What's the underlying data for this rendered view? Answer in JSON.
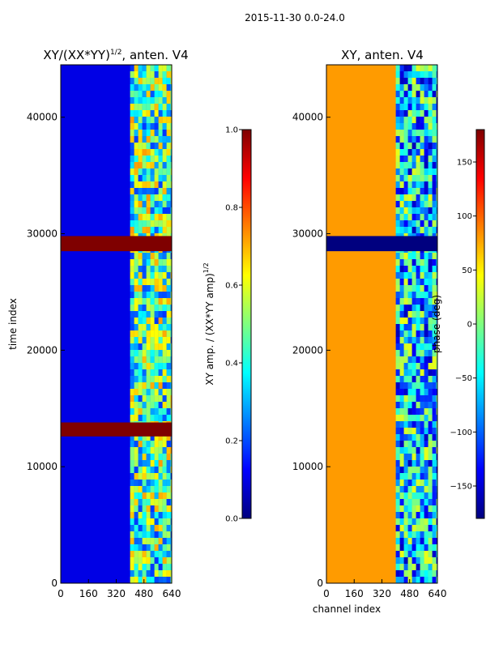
{
  "suptitle": "2015-11-30 0.0-24.0",
  "chart_data": [
    {
      "type": "heatmap",
      "title_main": "XY/(XX*YY)",
      "title_exp": "1/2",
      "title_suffix": ", anten. V4",
      "xlabel": "",
      "ylabel": "time index",
      "x_ticks": [
        0,
        160,
        320,
        480,
        640
      ],
      "y_ticks": [
        0,
        10000,
        20000,
        30000,
        40000
      ],
      "xlim": [
        0,
        640
      ],
      "ylim": [
        0,
        44500
      ],
      "colorbar": {
        "label_main": "XY amp. / (XX*YY amp)",
        "label_exp": "1/2",
        "ticks": [
          "0.0",
          "0.2",
          "0.4",
          "0.6",
          "0.8",
          "1.0"
        ],
        "range": [
          0.0,
          1.0
        ],
        "colormap": "jet"
      },
      "description_regions": {
        "base_value": 0.1,
        "active_channel_range": [
          400,
          640
        ],
        "active_value": 0.45,
        "flagged_time_bands": [
          [
            28500,
            29800
          ],
          [
            12600,
            13800
          ]
        ],
        "flagged_value": 1.0
      }
    },
    {
      "type": "heatmap",
      "title": "XY, anten. V4",
      "xlabel": "channel index",
      "ylabel": "",
      "x_ticks": [
        0,
        160,
        320,
        480,
        640
      ],
      "y_ticks": [
        0,
        10000,
        20000,
        30000,
        40000
      ],
      "xlim": [
        0,
        640
      ],
      "ylim": [
        0,
        44500
      ],
      "colorbar": {
        "label": "phase (deg)",
        "ticks": [
          "−150",
          "−100",
          "−50",
          "0",
          "50",
          "100",
          "150"
        ],
        "range": [
          -180,
          180
        ],
        "colormap": "jet"
      },
      "description_regions": {
        "base_value": 80,
        "active_channel_range": [
          400,
          640
        ],
        "active_value": -60,
        "flagged_time_bands": [
          [
            28500,
            29800
          ]
        ],
        "flagged_value": -180
      }
    }
  ],
  "colors": {
    "jet": [
      "#00007f",
      "#0000ff",
      "#007fff",
      "#00ffff",
      "#7fff7f",
      "#ffff00",
      "#ff7f00",
      "#ff0000",
      "#7f0000"
    ]
  }
}
